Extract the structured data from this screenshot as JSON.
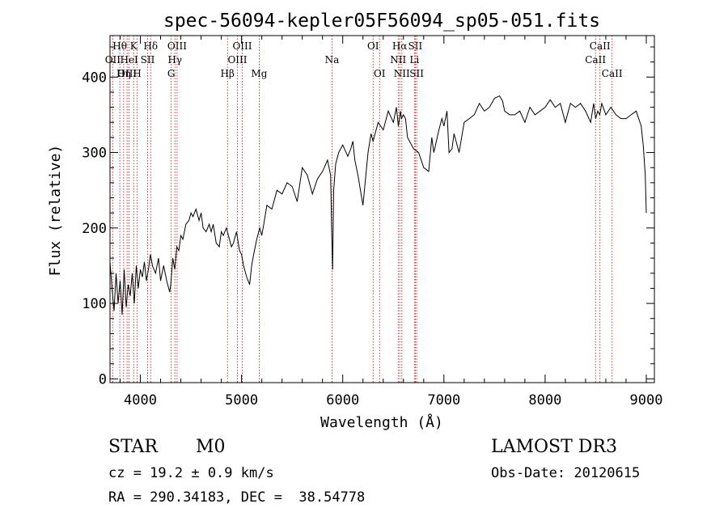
{
  "chart_data": {
    "type": "line",
    "title": "spec-56094-kepler05F56094_sp05-051.fits",
    "xlabel": "Wavelength (Å)",
    "ylabel": "Flux (relative)",
    "xlim": [
      3700,
      9080
    ],
    "ylim": [
      -5,
      455
    ],
    "x_ticks": [
      4000,
      5000,
      6000,
      7000,
      8000,
      9000
    ],
    "y_ticks": [
      0,
      100,
      200,
      300,
      400
    ],
    "grid": false,
    "spectrum": {
      "x": [
        3700,
        3720,
        3740,
        3760,
        3780,
        3800,
        3820,
        3840,
        3860,
        3880,
        3900,
        3920,
        3940,
        3960,
        3980,
        4000,
        4020,
        4040,
        4060,
        4080,
        4100,
        4120,
        4150,
        4180,
        4200,
        4230,
        4260,
        4290,
        4300,
        4320,
        4340,
        4360,
        4380,
        4400,
        4420,
        4450,
        4480,
        4500,
        4520,
        4550,
        4580,
        4600,
        4620,
        4650,
        4680,
        4700,
        4720,
        4750,
        4780,
        4800,
        4820,
        4850,
        4880,
        4900,
        4920,
        4950,
        4980,
        5000,
        5020,
        5050,
        5080,
        5100,
        5120,
        5150,
        5180,
        5200,
        5220,
        5250,
        5300,
        5350,
        5400,
        5450,
        5500,
        5550,
        5600,
        5650,
        5700,
        5750,
        5800,
        5850,
        5880,
        5890,
        5900,
        5910,
        5930,
        5960,
        6000,
        6050,
        6080,
        6100,
        6120,
        6150,
        6200,
        6250,
        6280,
        6300,
        6350,
        6400,
        6450,
        6500,
        6530,
        6550,
        6560,
        6570,
        6580,
        6600,
        6620,
        6640,
        6660,
        6700,
        6750,
        6800,
        6850,
        6880,
        6900,
        6950,
        6980,
        7000,
        7030,
        7050,
        7080,
        7100,
        7150,
        7200,
        7250,
        7300,
        7350,
        7400,
        7450,
        7500,
        7550,
        7580,
        7600,
        7650,
        7700,
        7750,
        7800,
        7850,
        7900,
        7950,
        8000,
        8050,
        8100,
        8150,
        8200,
        8250,
        8300,
        8350,
        8400,
        8450,
        8480,
        8500,
        8520,
        8540,
        8560,
        8600,
        8650,
        8700,
        8750,
        8800,
        8850,
        8900,
        8950,
        8970,
        8990,
        9000
      ],
      "y": [
        155,
        120,
        90,
        140,
        100,
        130,
        85,
        145,
        95,
        125,
        110,
        140,
        100,
        150,
        120,
        145,
        135,
        155,
        130,
        145,
        165,
        150,
        140,
        160,
        130,
        150,
        130,
        115,
        125,
        160,
        145,
        175,
        170,
        190,
        185,
        205,
        210,
        220,
        215,
        225,
        210,
        220,
        200,
        195,
        205,
        195,
        205,
        180,
        175,
        195,
        190,
        200,
        185,
        175,
        180,
        195,
        170,
        165,
        150,
        135,
        125,
        150,
        165,
        185,
        200,
        190,
        205,
        230,
        225,
        250,
        245,
        260,
        255,
        235,
        280,
        270,
        245,
        265,
        275,
        290,
        270,
        200,
        145,
        250,
        285,
        300,
        310,
        295,
        305,
        315,
        290,
        270,
        230,
        300,
        325,
        315,
        340,
        330,
        355,
        340,
        360,
        335,
        345,
        355,
        345,
        350,
        345,
        320,
        315,
        305,
        300,
        280,
        275,
        320,
        300,
        330,
        345,
        335,
        355,
        300,
        305,
        325,
        300,
        340,
        345,
        350,
        365,
        355,
        360,
        372,
        375,
        368,
        355,
        350,
        350,
        355,
        340,
        360,
        350,
        355,
        360,
        370,
        360,
        365,
        340,
        365,
        360,
        365,
        355,
        340,
        365,
        345,
        355,
        350,
        365,
        350,
        360,
        350,
        345,
        345,
        350,
        355,
        335,
        310,
        270,
        220
      ]
    },
    "lines": [
      {
        "label": "Hθ",
        "wl": 3797,
        "row": 1
      },
      {
        "label": "OII",
        "wl": 3727,
        "row": 2
      },
      {
        "label": "OIII",
        "wl": 3869,
        "row": 3
      },
      {
        "label": "K",
        "wl": 3934,
        "row": 1
      },
      {
        "label": "HeI",
        "wl": 3889,
        "row": 2
      },
      {
        "label": "Hη",
        "wl": 3835,
        "row": 3
      },
      {
        "label": "H",
        "wl": 3969,
        "row": 3
      },
      {
        "label": "Hδ",
        "wl": 4102,
        "row": 1
      },
      {
        "label": "SII",
        "wl": 4072,
        "row": 2
      },
      {
        "label": "OIII",
        "wl": 4363,
        "row": 1
      },
      {
        "label": "Hγ",
        "wl": 4341,
        "row": 2
      },
      {
        "label": "G",
        "wl": 4305,
        "row": 3
      },
      {
        "label": "OIII",
        "wl": 5007,
        "row": 1
      },
      {
        "label": "OIII",
        "wl": 4959,
        "row": 2
      },
      {
        "label": "Hβ",
        "wl": 4861,
        "row": 3
      },
      {
        "label": "Mg",
        "wl": 5175,
        "row": 3
      },
      {
        "label": "Na",
        "wl": 5894,
        "row": 2
      },
      {
        "label": "OI",
        "wl": 6300,
        "row": 1
      },
      {
        "label": "OI",
        "wl": 6364,
        "row": 3
      },
      {
        "label": "Hα",
        "wl": 6563,
        "row": 1
      },
      {
        "label": "NII",
        "wl": 6548,
        "row": 2
      },
      {
        "label": "NII",
        "wl": 6584,
        "row": 3
      },
      {
        "label": "SII",
        "wl": 6717,
        "row": 1
      },
      {
        "label": "Li",
        "wl": 6708,
        "row": 2
      },
      {
        "label": "SII",
        "wl": 6731,
        "row": 3
      },
      {
        "label": "CaII",
        "wl": 8542,
        "row": 1
      },
      {
        "label": "CaII",
        "wl": 8498,
        "row": 2
      },
      {
        "label": "CaII",
        "wl": 8662,
        "row": 3
      }
    ]
  },
  "info": {
    "object_class": "STAR",
    "subclass": "M0",
    "survey": "LAMOST DR3",
    "cz": "cz = 19.2 ± 0.9 km/s",
    "obs_date": "Obs-Date: 20120615",
    "coords": "RA = 290.34183, DEC =  38.54778"
  }
}
